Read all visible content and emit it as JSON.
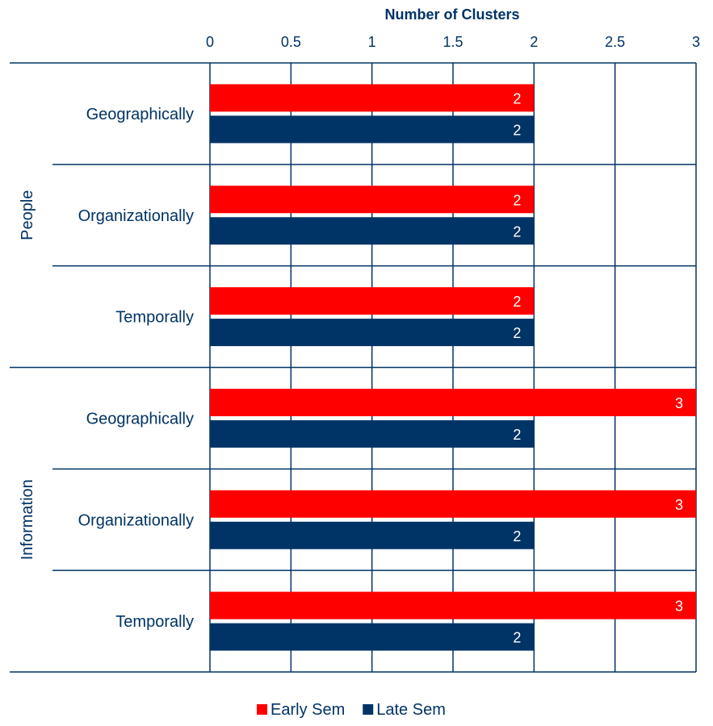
{
  "chart_data": {
    "type": "bar",
    "orientation": "horizontal",
    "xlabel": "Number of Clusters",
    "xlim": [
      0,
      3
    ],
    "xticks": [
      "0",
      "0.5",
      "1",
      "1.5",
      "2",
      "2.5",
      "3"
    ],
    "grid": true,
    "legend_position": "bottom",
    "groups": [
      {
        "label": "People",
        "categories": [
          "Geographically",
          "Organizationally",
          "Temporally"
        ]
      },
      {
        "label": "Information",
        "categories": [
          "Geographically",
          "Organizationally",
          "Temporally"
        ]
      }
    ],
    "series": [
      {
        "name": "Early Sem",
        "color": "#ff0000",
        "values": [
          2,
          2,
          2,
          3,
          3,
          3
        ]
      },
      {
        "name": "Late Sem",
        "color": "#003366",
        "values": [
          2,
          2,
          2,
          2,
          2,
          2
        ]
      }
    ]
  }
}
